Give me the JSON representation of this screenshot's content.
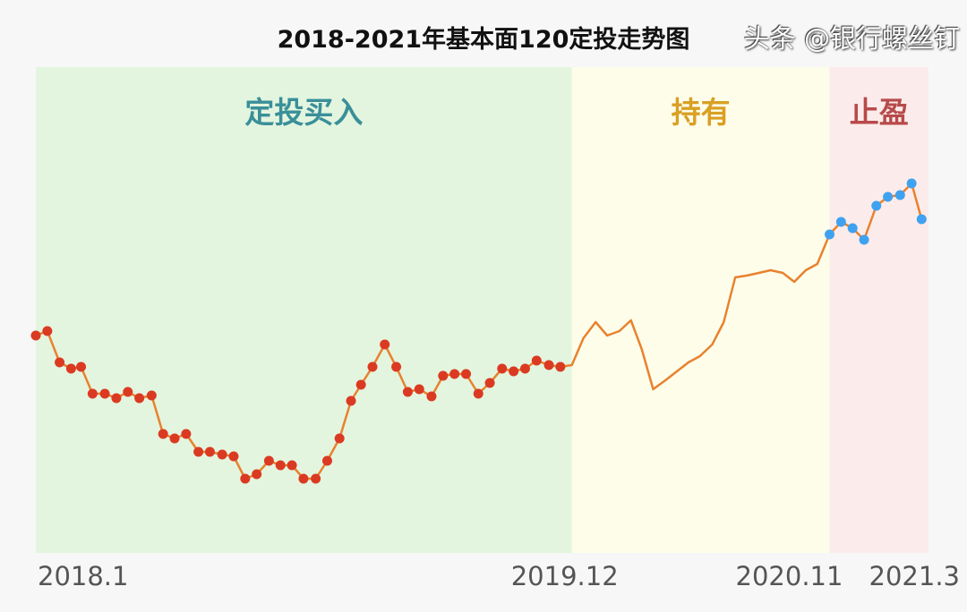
{
  "chart_data": {
    "type": "line",
    "title": "2018-2021年基本面120定投走势图",
    "xlabel": "",
    "ylabel": "",
    "x_tick_labels": [
      "2018.1",
      "2019.12",
      "2020.11",
      "2021.3"
    ],
    "x_tick_dates": [
      "2018-01-01",
      "2019-12-01",
      "2020-11-01",
      "2021-03-01"
    ],
    "y_axis_shown": false,
    "grid": false,
    "ylim": [
      0,
      5.43
    ],
    "line_color": "#e8822e",
    "phases": [
      {
        "label": "定投买入",
        "start": "2018-01-01",
        "end": "2019-12-01",
        "bg": "#e3f5df",
        "text_color": "#3a8f99",
        "marker_color": "#db3a22"
      },
      {
        "label": "持有",
        "start": "2019-12-01",
        "end": "2020-11-01",
        "bg": "#fdfdea",
        "text_color": "#d9a024",
        "marker_color": null
      },
      {
        "label": "止盈",
        "start": "2020-11-01",
        "end": "2021-03-10",
        "bg": "#fbeceb",
        "text_color": "#b84a4a",
        "marker_color": "#3fa2f0"
      }
    ],
    "dates": [
      "2018-01-01",
      "2018-01-16",
      "2018-02-01",
      "2018-02-16",
      "2018-03-01",
      "2018-03-16",
      "2018-04-01",
      "2018-04-16",
      "2018-05-01",
      "2018-05-16",
      "2018-06-01",
      "2018-06-16",
      "2018-07-01",
      "2018-07-16",
      "2018-08-01",
      "2018-08-16",
      "2018-09-01",
      "2018-09-16",
      "2018-10-01",
      "2018-10-16",
      "2018-11-01",
      "2018-11-16",
      "2018-12-01",
      "2018-12-16",
      "2019-01-01",
      "2019-01-16",
      "2019-02-01",
      "2019-02-16",
      "2019-03-01",
      "2019-03-16",
      "2019-04-01",
      "2019-04-16",
      "2019-05-01",
      "2019-05-16",
      "2019-06-01",
      "2019-06-16",
      "2019-07-01",
      "2019-07-16",
      "2019-08-01",
      "2019-08-16",
      "2019-09-01",
      "2019-09-16",
      "2019-10-01",
      "2019-10-16",
      "2019-11-01",
      "2019-11-16",
      "2019-12-01",
      "2019-12-16",
      "2020-01-01",
      "2020-01-16",
      "2020-02-01",
      "2020-02-16",
      "2020-03-01",
      "2020-03-16",
      "2020-04-01",
      "2020-04-16",
      "2020-05-01",
      "2020-05-16",
      "2020-06-01",
      "2020-06-16",
      "2020-07-01",
      "2020-07-16",
      "2020-08-01",
      "2020-08-16",
      "2020-09-01",
      "2020-09-16",
      "2020-10-01",
      "2020-10-16",
      "2020-11-01",
      "2020-11-16",
      "2020-12-01",
      "2020-12-16",
      "2021-01-01",
      "2021-01-16",
      "2021-02-01",
      "2021-02-16",
      "2021-03-01"
    ],
    "values": [
      2.43,
      2.48,
      2.13,
      2.06,
      2.08,
      1.78,
      1.78,
      1.73,
      1.8,
      1.73,
      1.76,
      1.33,
      1.28,
      1.33,
      1.13,
      1.13,
      1.1,
      1.08,
      0.83,
      0.88,
      1.03,
      0.98,
      0.98,
      0.83,
      0.83,
      1.03,
      1.28,
      1.7,
      1.88,
      2.08,
      2.33,
      2.08,
      1.8,
      1.83,
      1.75,
      1.98,
      2.0,
      2.0,
      1.78,
      1.9,
      2.06,
      2.03,
      2.06,
      2.15,
      2.1,
      2.08,
      2.1,
      2.4,
      2.58,
      2.43,
      2.48,
      2.6,
      2.28,
      1.83,
      1.93,
      2.03,
      2.13,
      2.2,
      2.33,
      2.58,
      3.08,
      3.1,
      3.13,
      3.16,
      3.13,
      3.03,
      3.16,
      3.23,
      3.56,
      3.7,
      3.63,
      3.5,
      3.88,
      3.98,
      4.0,
      4.13,
      3.73
    ]
  },
  "watermark": "头条 @银行螺丝钉"
}
